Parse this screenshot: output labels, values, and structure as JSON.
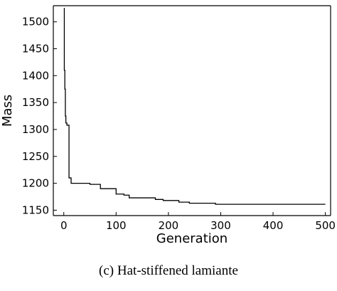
{
  "chart_data": {
    "type": "line",
    "title": "",
    "xlabel": "Generation",
    "ylabel": "Mass",
    "xlim": [
      -20,
      510
    ],
    "ylim": [
      1140,
      1530
    ],
    "xticks": [
      0,
      100,
      200,
      300,
      400,
      500
    ],
    "yticks": [
      1150,
      1200,
      1250,
      1300,
      1350,
      1400,
      1450,
      1500
    ],
    "grid": false,
    "series": [
      {
        "step": "post",
        "x": [
          0,
          1,
          2,
          3,
          4,
          6,
          10,
          14,
          40,
          50,
          70,
          100,
          115,
          125,
          175,
          190,
          220,
          240,
          290,
          500
        ],
        "y": [
          1525,
          1410,
          1375,
          1325,
          1312,
          1308,
          1210,
          1200,
          1200,
          1198,
          1190,
          1180,
          1178,
          1173,
          1170,
          1168,
          1165,
          1163,
          1161,
          1161
        ]
      }
    ]
  },
  "caption": "(c) Hat-stiffened lamiante"
}
